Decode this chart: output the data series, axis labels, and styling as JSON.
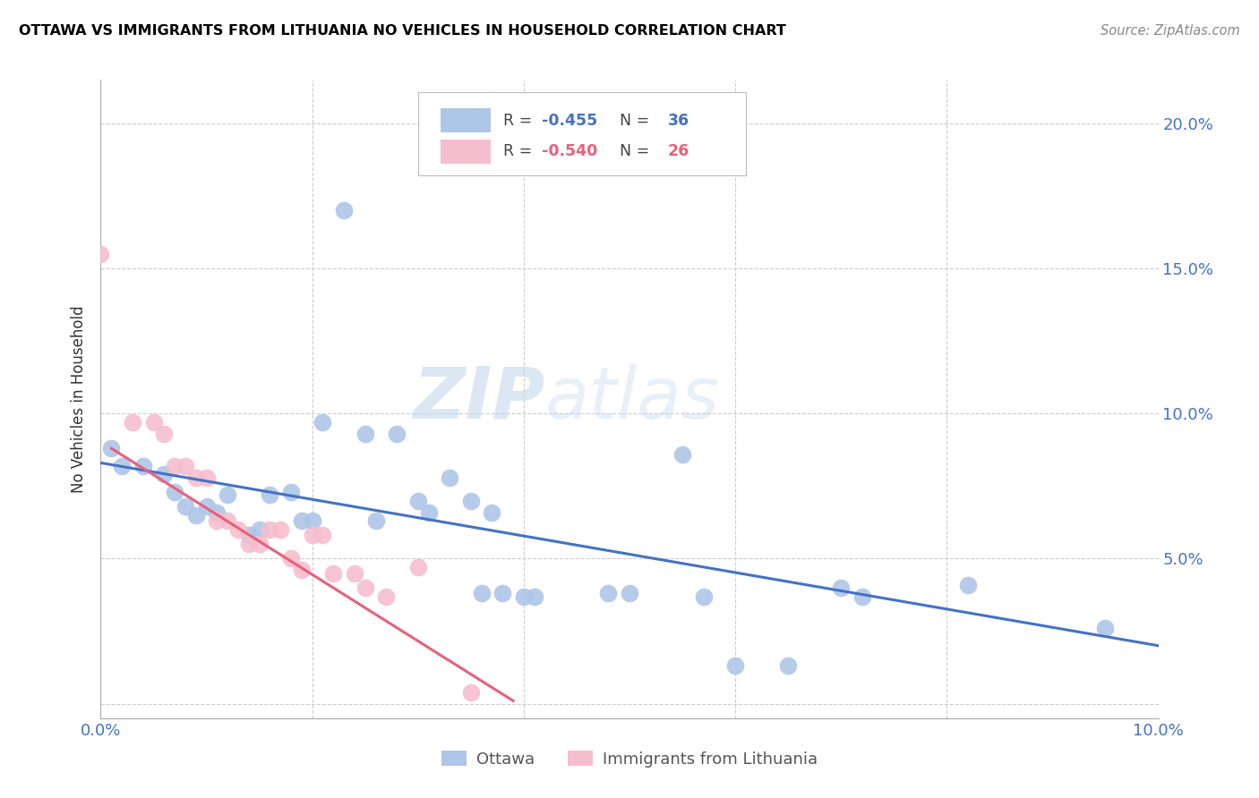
{
  "title": "OTTAWA VS IMMIGRANTS FROM LITHUANIA NO VEHICLES IN HOUSEHOLD CORRELATION CHART",
  "source": "Source: ZipAtlas.com",
  "ylabel": "No Vehicles in Household",
  "xlim": [
    0.0,
    0.1
  ],
  "ylim": [
    -0.005,
    0.215
  ],
  "ottawa_color": "#aec6e8",
  "lithuania_color": "#f5bece",
  "ottawa_line_color": "#4472c4",
  "lithuania_line_color": "#e8607a",
  "axis_color": "#4472c4",
  "grid_color": "#cccccc",
  "ottawa_scatter": [
    [
      0.001,
      0.088
    ],
    [
      0.002,
      0.082
    ],
    [
      0.004,
      0.082
    ],
    [
      0.006,
      0.079
    ],
    [
      0.007,
      0.073
    ],
    [
      0.008,
      0.068
    ],
    [
      0.009,
      0.065
    ],
    [
      0.01,
      0.068
    ],
    [
      0.011,
      0.066
    ],
    [
      0.012,
      0.072
    ],
    [
      0.014,
      0.058
    ],
    [
      0.015,
      0.06
    ],
    [
      0.016,
      0.072
    ],
    [
      0.018,
      0.073
    ],
    [
      0.019,
      0.063
    ],
    [
      0.02,
      0.063
    ],
    [
      0.021,
      0.097
    ],
    [
      0.023,
      0.17
    ],
    [
      0.025,
      0.093
    ],
    [
      0.026,
      0.063
    ],
    [
      0.028,
      0.093
    ],
    [
      0.03,
      0.07
    ],
    [
      0.031,
      0.066
    ],
    [
      0.033,
      0.078
    ],
    [
      0.035,
      0.07
    ],
    [
      0.036,
      0.038
    ],
    [
      0.037,
      0.066
    ],
    [
      0.038,
      0.038
    ],
    [
      0.04,
      0.037
    ],
    [
      0.041,
      0.037
    ],
    [
      0.048,
      0.038
    ],
    [
      0.05,
      0.038
    ],
    [
      0.055,
      0.086
    ],
    [
      0.057,
      0.037
    ],
    [
      0.06,
      0.013
    ],
    [
      0.065,
      0.013
    ],
    [
      0.07,
      0.04
    ],
    [
      0.072,
      0.037
    ],
    [
      0.082,
      0.041
    ],
    [
      0.095,
      0.026
    ]
  ],
  "lithuania_scatter": [
    [
      0.0,
      0.155
    ],
    [
      0.003,
      0.097
    ],
    [
      0.005,
      0.097
    ],
    [
      0.006,
      0.093
    ],
    [
      0.007,
      0.082
    ],
    [
      0.008,
      0.082
    ],
    [
      0.009,
      0.078
    ],
    [
      0.01,
      0.078
    ],
    [
      0.011,
      0.063
    ],
    [
      0.012,
      0.063
    ],
    [
      0.013,
      0.06
    ],
    [
      0.014,
      0.055
    ],
    [
      0.015,
      0.055
    ],
    [
      0.016,
      0.06
    ],
    [
      0.017,
      0.06
    ],
    [
      0.018,
      0.05
    ],
    [
      0.019,
      0.046
    ],
    [
      0.02,
      0.058
    ],
    [
      0.021,
      0.058
    ],
    [
      0.022,
      0.045
    ],
    [
      0.024,
      0.045
    ],
    [
      0.025,
      0.04
    ],
    [
      0.027,
      0.037
    ],
    [
      0.03,
      0.047
    ],
    [
      0.035,
      0.004
    ]
  ],
  "ottawa_trendline_x": [
    0.0,
    0.1
  ],
  "ottawa_trendline_y": [
    0.083,
    0.02
  ],
  "lithuania_trendline_x": [
    0.001,
    0.039
  ],
  "lithuania_trendline_y": [
    0.088,
    0.001
  ]
}
